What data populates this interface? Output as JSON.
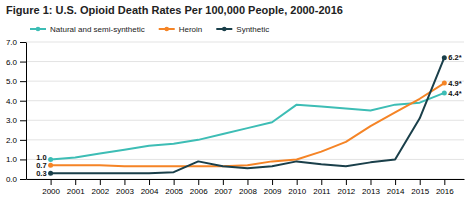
{
  "chart_data": {
    "type": "line",
    "title": "Figure 1: U.S. Opioid Death Rates Per 100,000 People, 2000-2016",
    "x": [
      2000,
      2001,
      2002,
      2003,
      2004,
      2005,
      2006,
      2007,
      2008,
      2009,
      2010,
      2011,
      2012,
      2013,
      2014,
      2015,
      2016
    ],
    "series": [
      {
        "name": "Natural and semi-synthetic",
        "color": "#3dbdb5",
        "values": [
          1.0,
          1.1,
          1.3,
          1.5,
          1.7,
          1.8,
          2.0,
          2.3,
          2.6,
          2.9,
          3.8,
          3.7,
          3.6,
          3.5,
          3.8,
          3.9,
          4.4
        ]
      },
      {
        "name": "Heroin",
        "color": "#f58426",
        "values": [
          0.7,
          0.7,
          0.7,
          0.65,
          0.65,
          0.65,
          0.65,
          0.65,
          0.7,
          0.9,
          1.0,
          1.4,
          1.9,
          2.7,
          3.4,
          4.1,
          4.9
        ]
      },
      {
        "name": "Synthetic",
        "color": "#1a3f4a",
        "values": [
          0.3,
          0.3,
          0.3,
          0.3,
          0.3,
          0.35,
          0.9,
          0.65,
          0.55,
          0.65,
          0.9,
          0.75,
          0.65,
          0.85,
          1.0,
          3.1,
          6.2
        ]
      }
    ],
    "xlim": [
      1999.0,
      2016.8
    ],
    "xticks": [
      2000,
      2001,
      2002,
      2003,
      2004,
      2005,
      2006,
      2007,
      2008,
      2009,
      2010,
      2011,
      2012,
      2013,
      2014,
      2015,
      2016
    ],
    "ylim": [
      0,
      7.0
    ],
    "yticks": [
      {
        "value": 0.0,
        "label": "0.0"
      },
      {
        "value": 1.0,
        "label": "1.0"
      },
      {
        "value": 2.0,
        "label": "2.0"
      },
      {
        "value": 3.0,
        "label": "3.0"
      },
      {
        "value": 4.0,
        "label": "4.0"
      },
      {
        "value": 5.0,
        "label": "5.0"
      },
      {
        "value": 6.0,
        "label": "6.0"
      },
      {
        "value": 7.0,
        "label": "7.0"
      }
    ],
    "annotations": [
      {
        "text": "1.0",
        "x": 2000,
        "y": 1.0
      },
      {
        "text": "0.7",
        "x": 2000,
        "y": 0.7
      },
      {
        "text": "0.3",
        "x": 2000,
        "y": 0.3
      },
      {
        "text": "4.4*",
        "x": 2016,
        "y": 4.4
      },
      {
        "text": "4.9*",
        "x": 2016,
        "y": 4.9
      },
      {
        "text": "6.2*",
        "x": 2016,
        "y": 6.2
      }
    ],
    "marker": "circle",
    "grid": true,
    "legend": "top"
  }
}
